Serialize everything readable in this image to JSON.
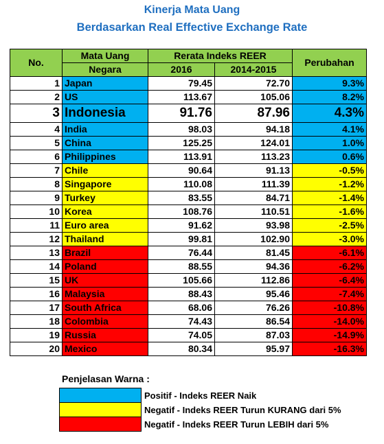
{
  "title_line1": "Kinerja Mata Uang",
  "title_line2": "Berdasarkan Real Effective Exchange Rate",
  "headers": {
    "no": "No.",
    "mata_uang_1": "Mata Uang",
    "mata_uang_2": "Negara",
    "rerata": "Rerata Indeks REER",
    "col_2016": "2016",
    "col_2014": "2014-2015",
    "perubahan": "Perubahan"
  },
  "rows": [
    {
      "no": "1",
      "country": "Japan",
      "v2016": "79.45",
      "v2014": "72.70",
      "change": "9.3%",
      "group": "blue"
    },
    {
      "no": "2",
      "country": "US",
      "v2016": "113.67",
      "v2014": "105.06",
      "change": "8.2%",
      "group": "blue"
    },
    {
      "no": "3",
      "country": "Indonesia",
      "v2016": "91.76",
      "v2014": "87.96",
      "change": "4.3%",
      "group": "blue"
    },
    {
      "no": "4",
      "country": "India",
      "v2016": "98.03",
      "v2014": "94.18",
      "change": "4.1%",
      "group": "blue"
    },
    {
      "no": "5",
      "country": "China",
      "v2016": "125.25",
      "v2014": "124.01",
      "change": "1.0%",
      "group": "blue"
    },
    {
      "no": "6",
      "country": "Philippines",
      "v2016": "113.91",
      "v2014": "113.23",
      "change": "0.6%",
      "group": "blue"
    },
    {
      "no": "7",
      "country": "Chile",
      "v2016": "90.64",
      "v2014": "91.13",
      "change": "-0.5%",
      "group": "yellow"
    },
    {
      "no": "8",
      "country": "Singapore",
      "v2016": "110.08",
      "v2014": "111.39",
      "change": "-1.2%",
      "group": "yellow"
    },
    {
      "no": "9",
      "country": "Turkey",
      "v2016": "83.55",
      "v2014": "84.71",
      "change": "-1.4%",
      "group": "yellow"
    },
    {
      "no": "10",
      "country": "Korea",
      "v2016": "108.76",
      "v2014": "110.51",
      "change": "-1.6%",
      "group": "yellow"
    },
    {
      "no": "11",
      "country": "Euro area",
      "v2016": "91.62",
      "v2014": "93.98",
      "change": "-2.5%",
      "group": "yellow"
    },
    {
      "no": "12",
      "country": "Thailand",
      "v2016": "99.81",
      "v2014": "102.90",
      "change": "-3.0%",
      "group": "yellow"
    },
    {
      "no": "13",
      "country": "Brazil",
      "v2016": "76.44",
      "v2014": "81.45",
      "change": "-6.1%",
      "group": "red"
    },
    {
      "no": "14",
      "country": "Poland",
      "v2016": "88.55",
      "v2014": "94.36",
      "change": "-6.2%",
      "group": "red"
    },
    {
      "no": "15",
      "country": "UK",
      "v2016": "105.66",
      "v2014": "112.86",
      "change": "-6.4%",
      "group": "red"
    },
    {
      "no": "16",
      "country": "Malaysia",
      "v2016": "88.43",
      "v2014": "95.46",
      "change": "-7.4%",
      "group": "red"
    },
    {
      "no": "17",
      "country": "South Africa",
      "v2016": "68.06",
      "v2014": "76.26",
      "change": "-10.8%",
      "group": "red"
    },
    {
      "no": "18",
      "country": "Colombia",
      "v2016": "74.43",
      "v2014": "86.54",
      "change": "-14.0%",
      "group": "red"
    },
    {
      "no": "19",
      "country": "Russia",
      "v2016": "74.05",
      "v2014": "87.03",
      "change": "-14.9%",
      "group": "red"
    },
    {
      "no": "20",
      "country": "Mexico",
      "v2016": "80.34",
      "v2014": "95.97",
      "change": "-16.3%",
      "group": "red"
    }
  ],
  "legend": {
    "title": "Penjelasan Warna :",
    "items": [
      {
        "color": "#00b0f0",
        "text": "Positif - Indeks REER Naik"
      },
      {
        "color": "#ffff00",
        "text": "Negatif - Indeks REER Turun KURANG dari 5%"
      },
      {
        "color": "#ff0000",
        "text": "Negatif - Indeks REER Turun LEBIH dari 5%"
      }
    ]
  },
  "colors": {
    "header": "#92d050",
    "positive": "#00b0f0",
    "neg_small": "#ffff00",
    "neg_large": "#ff0000",
    "title": "#1f6fc0"
  }
}
